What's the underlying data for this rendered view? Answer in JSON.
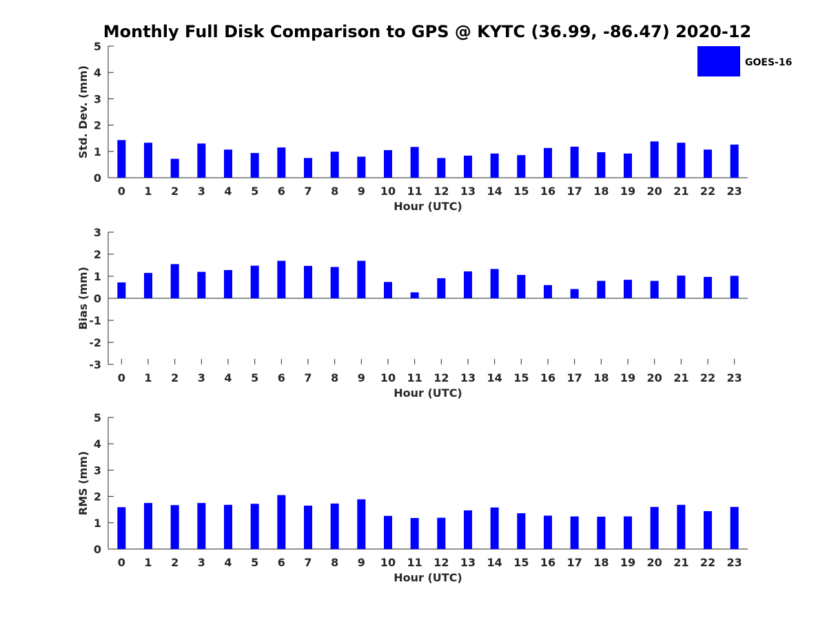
{
  "chart_data": {
    "type": "bar",
    "title": "Monthly Full Disk Comparison to GPS @ KYTC (36.99, -86.47) 2020-12",
    "legend": {
      "entries": [
        "GOES-16"
      ],
      "placement": "top-right"
    },
    "color": "#0000ff",
    "categories": [
      "0",
      "1",
      "2",
      "3",
      "4",
      "5",
      "6",
      "7",
      "8",
      "9",
      "10",
      "11",
      "12",
      "13",
      "14",
      "15",
      "16",
      "17",
      "18",
      "19",
      "20",
      "21",
      "22",
      "23"
    ],
    "panels": [
      {
        "type": "bar",
        "xlabel": "Hour (UTC)",
        "ylabel": "Std. Dev. (mm)",
        "ylim": [
          0,
          5
        ],
        "yticks": [
          "0",
          "1",
          "2",
          "3",
          "4",
          "5"
        ],
        "series": [
          {
            "name": "GOES-16",
            "values": [
              1.43,
              1.33,
              0.72,
              1.3,
              1.07,
              0.94,
              1.15,
              0.75,
              0.99,
              0.8,
              1.05,
              1.17,
              0.75,
              0.84,
              0.92,
              0.86,
              1.13,
              1.18,
              0.97,
              0.92,
              1.38,
              1.33,
              1.07,
              1.26
            ]
          }
        ]
      },
      {
        "type": "bar",
        "xlabel": "Hour (UTC)",
        "ylabel": "Bias (mm)",
        "ylim": [
          -3,
          3
        ],
        "yticks": [
          "-3",
          "-2",
          "-1",
          "0",
          "1",
          "2",
          "3"
        ],
        "series": [
          {
            "name": "GOES-16",
            "values": [
              0.72,
              1.15,
              1.55,
              1.2,
              1.28,
              1.48,
              1.7,
              1.47,
              1.42,
              1.7,
              0.74,
              0.27,
              0.91,
              1.22,
              1.33,
              1.06,
              0.6,
              0.42,
              0.79,
              0.84,
              0.79,
              1.03,
              0.97,
              1.02
            ]
          }
        ]
      },
      {
        "type": "bar",
        "xlabel": "Hour (UTC)",
        "ylabel": "RMS (mm)",
        "ylim": [
          0,
          5
        ],
        "yticks": [
          "0",
          "1",
          "2",
          "3",
          "4",
          "5"
        ],
        "series": [
          {
            "name": "GOES-16",
            "values": [
              1.59,
              1.75,
              1.67,
              1.75,
              1.68,
              1.72,
              2.05,
              1.65,
              1.73,
              1.89,
              1.26,
              1.18,
              1.19,
              1.47,
              1.58,
              1.36,
              1.27,
              1.24,
              1.23,
              1.24,
              1.6,
              1.68,
              1.44,
              1.6
            ]
          }
        ]
      }
    ]
  }
}
